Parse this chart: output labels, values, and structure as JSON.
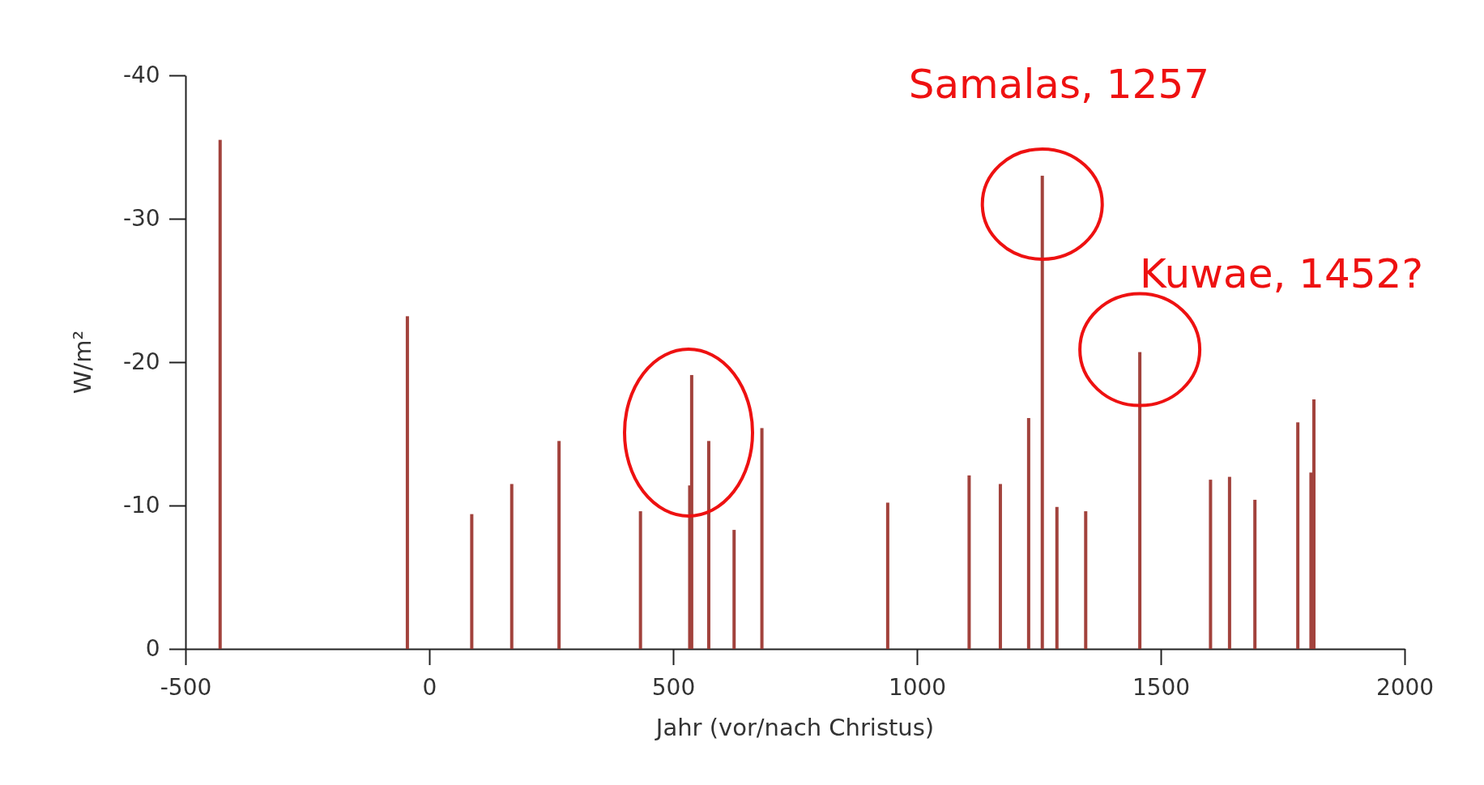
{
  "chart_data": {
    "type": "bar",
    "xlabel": "Jahr (vor/nach Christus)",
    "ylabel": "W/m²",
    "color": "#a2423c",
    "x": [
      -429,
      -45,
      87,
      169,
      266,
      433,
      534,
      538,
      573,
      625,
      682,
      940,
      1107,
      1171,
      1229,
      1257,
      1287,
      1346,
      1457,
      1602,
      1641,
      1693,
      1781,
      1808,
      1814
    ],
    "values": [
      -35.5,
      -23.2,
      -9.4,
      -11.5,
      -14.5,
      -9.6,
      -11.4,
      -19.1,
      -14.5,
      -8.3,
      -15.4,
      -10.2,
      -12.1,
      -11.5,
      -16.1,
      -33.0,
      -9.9,
      -9.6,
      -20.7,
      -11.8,
      -12.0,
      -10.4,
      -15.8,
      -12.3,
      -17.4
    ],
    "xlim": [
      -500,
      2000
    ],
    "xticks": [
      -500,
      0,
      500,
      1000,
      1500,
      2000
    ],
    "ylim": [
      0,
      -40
    ],
    "yticks": [
      0,
      -10,
      -20,
      -30,
      -40
    ],
    "annotations": [
      {
        "text": "Samalas, 1257",
        "x": 1257,
        "y": -33.0
      },
      {
        "text": "Kuwae, 1452?",
        "x": 1457,
        "y": -20.7
      }
    ],
    "grid": false
  }
}
